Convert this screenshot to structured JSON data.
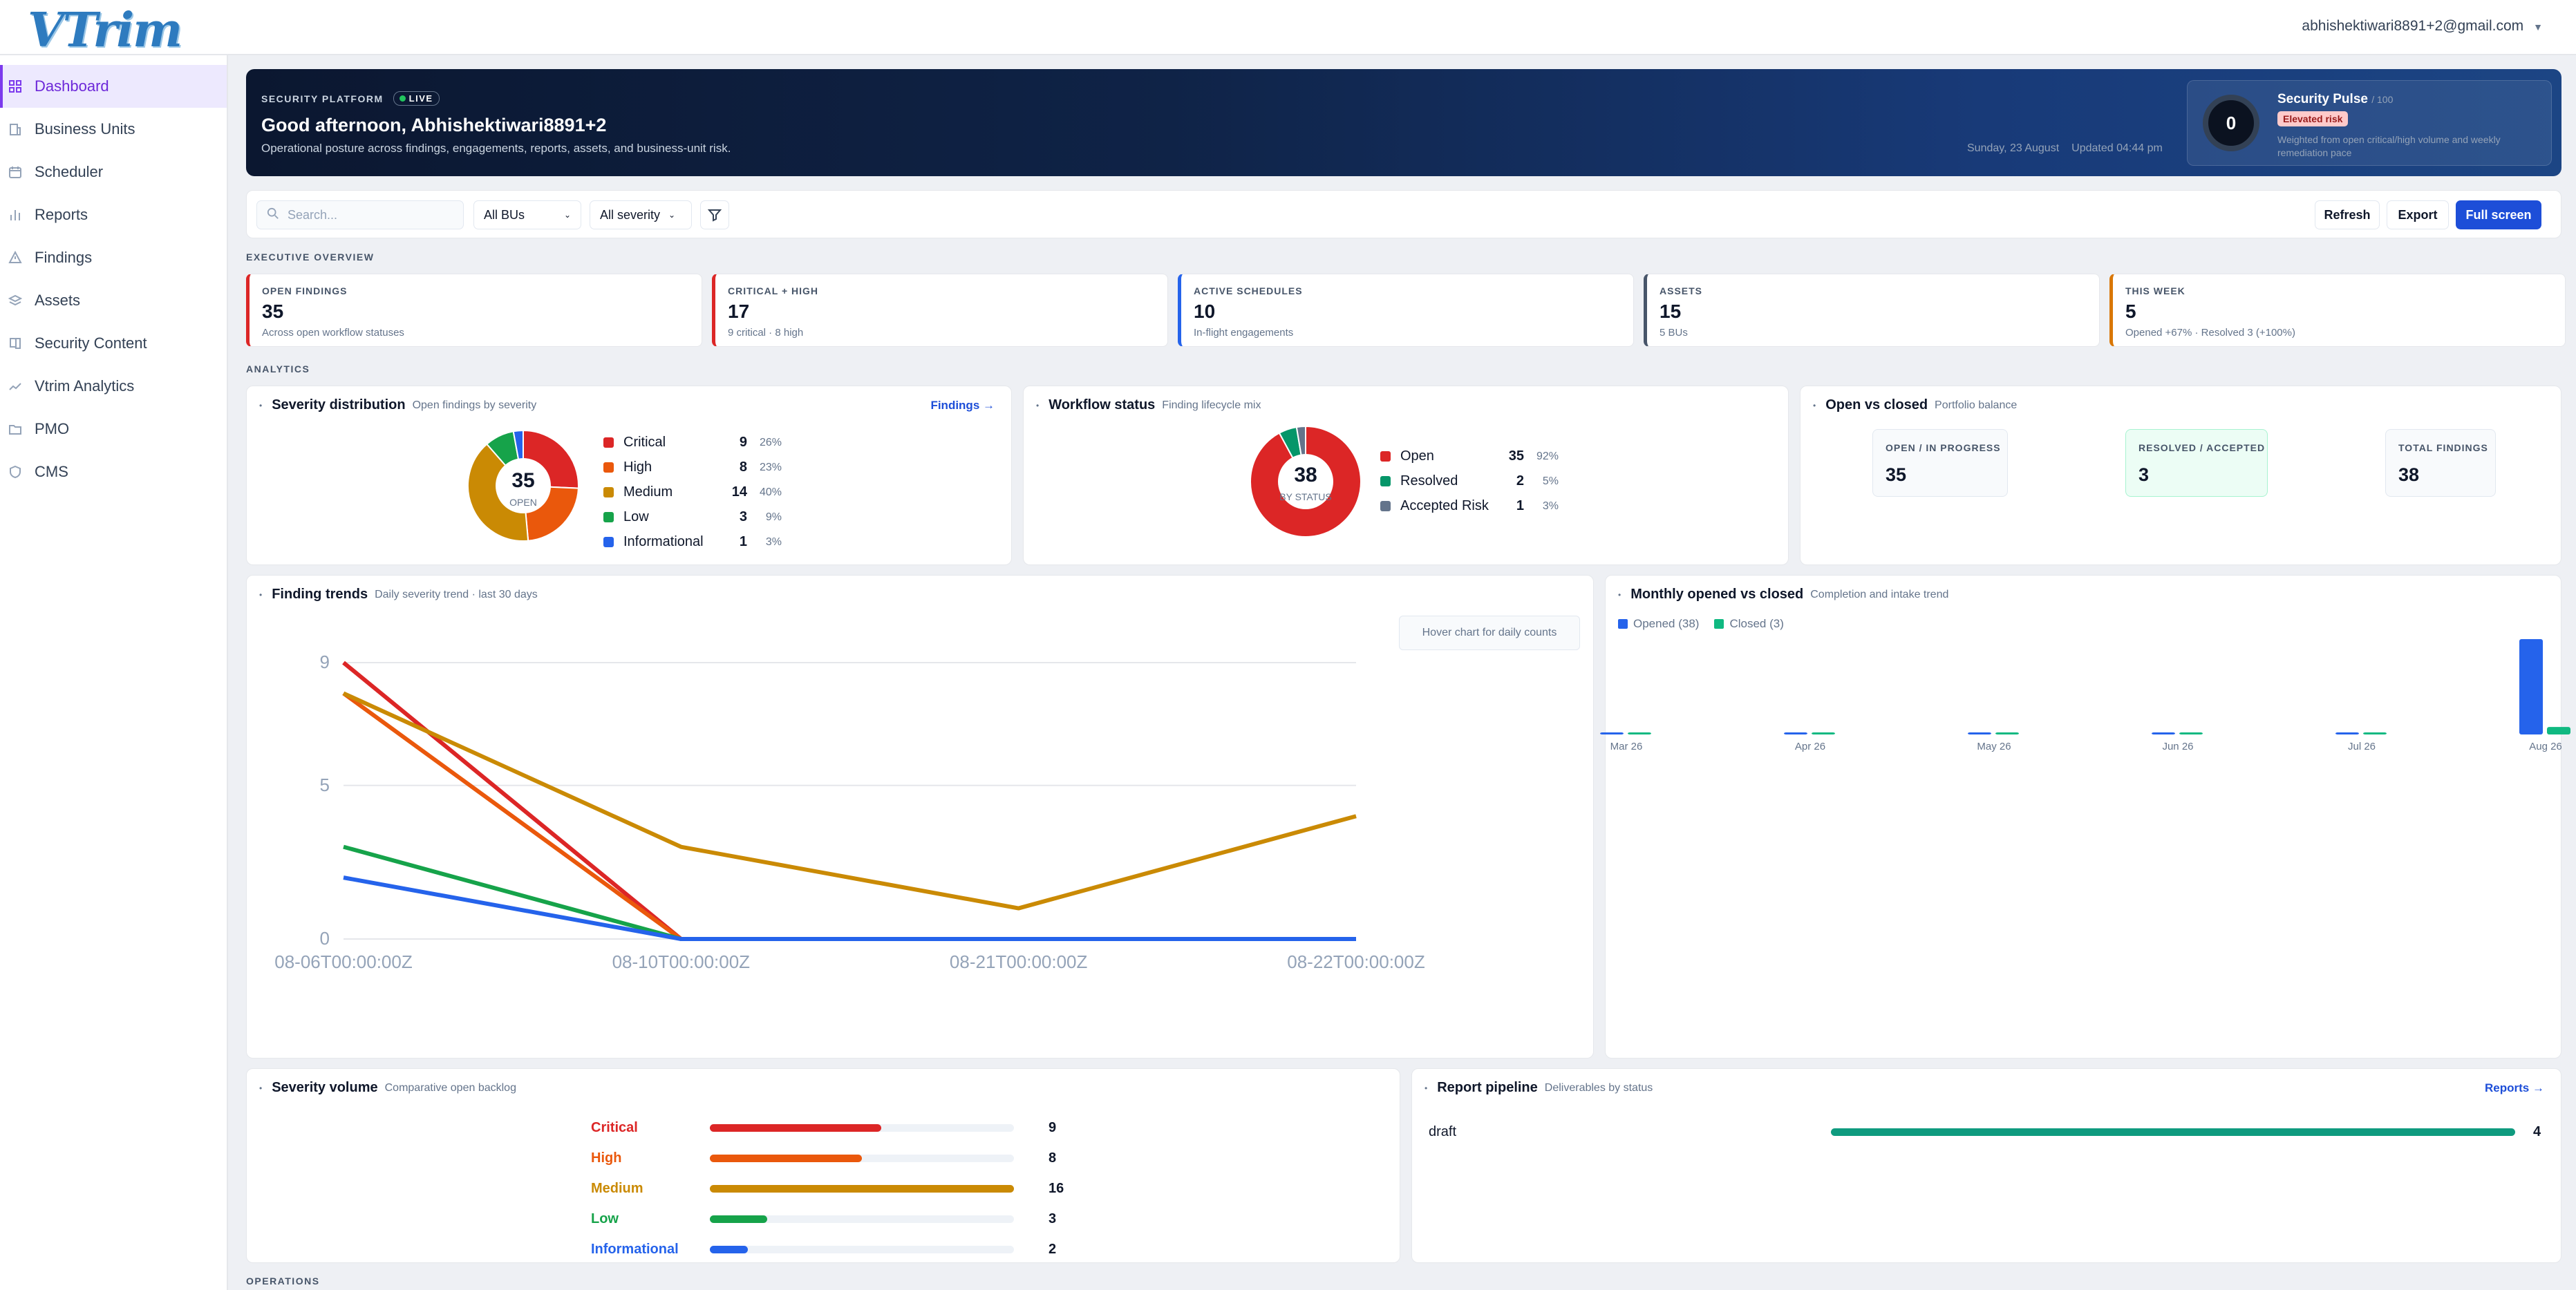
{
  "header": {
    "logo": "VTrim",
    "user_email": "abhishektiwari8891+2@gmail.com"
  },
  "sidebar": {
    "items": [
      {
        "label": "Dashboard",
        "icon": "grid-icon"
      },
      {
        "label": "Business Units",
        "icon": "building-icon"
      },
      {
        "label": "Scheduler",
        "icon": "calendar-icon"
      },
      {
        "label": "Reports",
        "icon": "bar-chart-icon"
      },
      {
        "label": "Findings",
        "icon": "warning-icon"
      },
      {
        "label": "Assets",
        "icon": "stack-icon"
      },
      {
        "label": "Security Content",
        "icon": "book-icon"
      },
      {
        "label": "Vtrim Analytics",
        "icon": "trend-icon"
      },
      {
        "label": "PMO",
        "icon": "folder-icon"
      },
      {
        "label": "CMS",
        "icon": "shield-icon"
      }
    ]
  },
  "hero": {
    "eyebrow": "SECURITY PLATFORM",
    "live": "LIVE",
    "greeting": "Good afternoon, Abhishektiwari8891+2",
    "subtitle": "Operational posture across findings, engagements, reports, assets, and business-unit risk.",
    "date": "Sunday, 23 August",
    "updated": "Updated 04:44 pm",
    "pulse": {
      "score": "0",
      "title": "Security Pulse",
      "max": "/ 100",
      "badge": "Elevated risk",
      "desc": "Weighted from open critical/high volume and weekly remediation pace"
    }
  },
  "toolbar": {
    "search_placeholder": "Search...",
    "bu_select": "All BUs",
    "severity_select": "All severity",
    "refresh": "Refresh",
    "export": "Export",
    "fullscreen": "Full screen"
  },
  "sections": {
    "overview": "EXECUTIVE OVERVIEW",
    "analytics": "ANALYTICS",
    "operations": "OPERATIONS"
  },
  "kpis": [
    {
      "label": "OPEN FINDINGS",
      "value": "35",
      "sub": "Across open workflow statuses",
      "color": "#dc2626"
    },
    {
      "label": "CRITICAL + HIGH",
      "value": "17",
      "sub": "9 critical · 8 high",
      "color": "#dc2626"
    },
    {
      "label": "ACTIVE SCHEDULES",
      "value": "10",
      "sub": "In-flight engagements",
      "color": "#2563eb"
    },
    {
      "label": "ASSETS",
      "value": "15",
      "sub": "5 BUs",
      "color": "#475569"
    },
    {
      "label": "THIS WEEK",
      "value": "5",
      "sub": "Opened +67% · Resolved 3 (+100%)",
      "color": "#d97706"
    }
  ],
  "severity": {
    "title": "Severity distribution",
    "subtitle": "Open findings by severity",
    "link": "Findings →",
    "center_value": "35",
    "center_label": "OPEN",
    "rows": [
      {
        "label": "Critical",
        "count": "9",
        "pct": "26%",
        "color": "#dc2626"
      },
      {
        "label": "High",
        "count": "8",
        "pct": "23%",
        "color": "#ea580c"
      },
      {
        "label": "Medium",
        "count": "14",
        "pct": "40%",
        "color": "#ca8a04"
      },
      {
        "label": "Low",
        "count": "3",
        "pct": "9%",
        "color": "#16a34a"
      },
      {
        "label": "Informational",
        "count": "1",
        "pct": "3%",
        "color": "#2563eb"
      }
    ]
  },
  "workflow": {
    "title": "Workflow status",
    "subtitle": "Finding lifecycle mix",
    "center_value": "38",
    "center_label": "BY STATUS",
    "rows": [
      {
        "label": "Open",
        "count": "35",
        "pct": "92%",
        "color": "#dc2626"
      },
      {
        "label": "Resolved",
        "count": "2",
        "pct": "5%",
        "color": "#059669"
      },
      {
        "label": "Accepted Risk",
        "count": "1",
        "pct": "3%",
        "color": "#64748b"
      }
    ]
  },
  "openclosed": {
    "title": "Open vs closed",
    "subtitle": "Portfolio balance",
    "tiles": [
      {
        "label": "OPEN / IN PROGRESS",
        "value": "35"
      },
      {
        "label": "RESOLVED / ACCEPTED",
        "value": "3"
      },
      {
        "label": "TOTAL FINDINGS",
        "value": "38"
      }
    ]
  },
  "trends": {
    "title": "Finding trends",
    "subtitle": "Daily severity trend · last 30 days",
    "hint": "Hover chart for daily counts"
  },
  "monthly": {
    "title": "Monthly opened vs closed",
    "subtitle": "Completion and intake trend",
    "legend_opened": "Opened (38)",
    "legend_closed": "Closed (3)"
  },
  "volume": {
    "title": "Severity volume",
    "subtitle": "Comparative open backlog",
    "rows": [
      {
        "label": "Critical",
        "value": "9",
        "frac": 0.5625,
        "color": "#dc2626"
      },
      {
        "label": "High",
        "value": "8",
        "frac": 0.5,
        "color": "#ea580c"
      },
      {
        "label": "Medium",
        "value": "16",
        "frac": 1.0,
        "color": "#ca8a04"
      },
      {
        "label": "Low",
        "value": "3",
        "frac": 0.1875,
        "color": "#16a34a"
      },
      {
        "label": "Informational",
        "value": "2",
        "frac": 0.125,
        "color": "#2563eb"
      }
    ]
  },
  "pipeline": {
    "title": "Report pipeline",
    "subtitle": "Deliverables by status",
    "link": "Reports →",
    "rows": [
      {
        "label": "draft",
        "value": "4",
        "frac": 1.0
      }
    ]
  },
  "chart_data": [
    {
      "type": "line",
      "x": [
        "08-06T00:00:00Z",
        "08-10T00:00:00Z",
        "08-21T00:00:00Z",
        "08-22T00:00:00Z"
      ],
      "ylim": [
        0,
        9
      ],
      "yticks": [
        "0",
        "5",
        "9"
      ],
      "series": [
        {
          "color": "#dc2626",
          "values": [
            9,
            0,
            0,
            0
          ]
        },
        {
          "color": "#ea580c",
          "values": [
            8,
            0,
            0,
            0
          ]
        },
        {
          "color": "#ca8a04",
          "values": [
            8,
            3,
            1,
            4
          ]
        },
        {
          "color": "#16a34a",
          "values": [
            3,
            0,
            0,
            0
          ]
        },
        {
          "color": "#2563eb",
          "values": [
            2,
            0,
            0,
            0
          ]
        }
      ]
    },
    {
      "type": "bar",
      "categories": [
        "Mar 26",
        "Apr 26",
        "May 26",
        "Jun 26",
        "Jul 26",
        "Aug 26"
      ],
      "series": [
        {
          "name": "Opened (38)",
          "color": "#2563eb",
          "values": [
            0,
            0,
            0,
            0,
            0,
            38
          ]
        },
        {
          "name": "Closed (3)",
          "color": "#10b981",
          "values": [
            0,
            0,
            0,
            0,
            0,
            3
          ]
        }
      ]
    }
  ]
}
